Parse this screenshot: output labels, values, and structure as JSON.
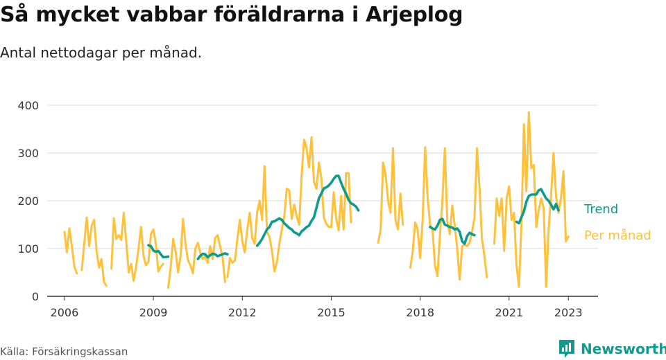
{
  "title": "Så mycket vabbar föräldrarna i Arjeplog",
  "subtitle": "Antal nettodagar per månad.",
  "source": "Källa: Försäkringskassan",
  "brand": {
    "name": "Newsworthy",
    "icon": "newsworthy-logo-icon"
  },
  "colors": {
    "monthly": "#ffc13b",
    "trend": "#0e9b8c",
    "grid": "#d9d9d9",
    "axis": "#333333"
  },
  "chart_data": {
    "type": "line",
    "title": "Så mycket vabbar föräldrarna i Arjeplog",
    "xlabel": "",
    "ylabel": "",
    "ylim": [
      0,
      400
    ],
    "xlim": [
      "2005-06",
      "2024-01"
    ],
    "yticks": [
      0,
      100,
      200,
      300,
      400
    ],
    "xticks": [
      {
        "label": "2006",
        "value": "2006-01"
      },
      {
        "label": "2009",
        "value": "2009-01"
      },
      {
        "label": "2012",
        "value": "2012-01"
      },
      {
        "label": "2015",
        "value": "2015-01"
      },
      {
        "label": "2018",
        "value": "2018-01"
      },
      {
        "label": "2021",
        "value": "2021-01"
      },
      {
        "label": "2023",
        "value": "2023-01"
      }
    ],
    "grid": true,
    "legend": "direct labels at line ends",
    "series": [
      {
        "name": "Per månad",
        "color": "#ffc13b",
        "segments": [
          {
            "start": "2006-01",
            "values": [
              135,
              92,
              142,
              105,
              62,
              48
            ]
          },
          {
            "start": "2006-08",
            "values": [
              55,
              110,
              165,
              105,
              148,
              160,
              95,
              60,
              78,
              30,
              22
            ]
          },
          {
            "start": "2007-08",
            "values": [
              58,
              163,
              120,
              128,
              118,
              175,
              115,
              50,
              68,
              32,
              62,
              100,
              145,
              85,
              65,
              72,
              130,
              140,
              110,
              52,
              62,
              68
            ]
          },
          {
            "start": "2009-07",
            "values": [
              18,
              60,
              120,
              95,
              50,
              85,
              162,
              110,
              75,
              65,
              48,
              100,
              112,
              90,
              78,
              85,
              70,
              105,
              78,
              122,
              128,
              105,
              82,
              30
            ]
          },
          {
            "start": "2011-07",
            "values": [
              40,
              80,
              70,
              75,
              120,
              160,
              115,
              92,
              140,
              175,
              122,
              110,
              175,
              200,
              160,
              272,
              135,
              125,
              95,
              52,
              72,
              110,
              140,
              168,
              225,
              222,
              162,
              192,
              168,
              150,
              250,
              328,
              310,
              270,
              333,
              240,
              225,
              280,
              248,
              165,
              152,
              145,
              145,
              218,
              162,
              138,
              210,
              140,
              258,
              258,
              155
            ]
          },
          {
            "start": "2016-08",
            "values": [
              112,
              140,
              280,
              255,
              200,
              175,
              310,
              160,
              140,
              215,
              150
            ]
          },
          {
            "start": "2017-09",
            "values": [
              60,
              95,
              155,
              140,
              80,
              160,
              312,
              210,
              150,
              140,
              65,
              42,
              128,
              200,
              310,
              155,
              130,
              190,
              148,
              100,
              35,
              105,
              108,
              105,
              112,
              135,
              165,
              310,
              230,
              120,
              85,
              40
            ]
          },
          {
            "start": "2020-07",
            "values": [
              110,
              205,
              168,
              205,
              95,
              205,
              230,
              160,
              175,
              65,
              20,
              150,
              360,
              220,
              385,
              268,
              275,
              145,
              180,
              205,
              185,
              20,
              140,
              210,
              300,
              210,
              175,
              205,
              262,
              115,
              125
            ]
          }
        ]
      },
      {
        "name": "Trend",
        "color": "#0e9b8c",
        "segments": [
          {
            "start": "2008-11",
            "values": [
              107,
              105,
              96,
              93,
              95,
              88,
              82,
              82,
              83
            ]
          },
          {
            "start": "2010-07",
            "values": [
              78,
              85,
              89,
              88,
              82,
              86,
              89,
              88,
              84,
              86,
              88,
              90,
              88
            ]
          },
          {
            "start": "2012-07",
            "values": [
              106,
              112,
              120,
              130,
              140,
              145,
              156,
              157,
              160,
              163,
              160,
              153,
              148,
              143,
              140,
              134,
              132,
              128,
              136,
              140,
              145,
              148,
              158,
              165,
              185,
              205,
              215,
              226,
              228,
              232,
              238,
              246,
              252,
              252,
              238,
              225,
              215,
              202,
              195,
              192,
              188,
              180
            ]
          },
          {
            "start": "2018-05",
            "values": [
              145,
              142,
              140,
              148,
              160,
              162,
              150,
              148,
              145,
              144,
              140,
              142,
              135,
              115,
              110,
              126,
              133,
              130,
              128
            ]
          },
          {
            "start": "2021-04",
            "values": [
              156,
              153,
              165,
              178,
              198,
              210,
              213,
              213,
              213,
              222,
              224,
              214,
              205,
              200,
              192,
              182,
              193,
              180
            ]
          }
        ]
      }
    ]
  }
}
